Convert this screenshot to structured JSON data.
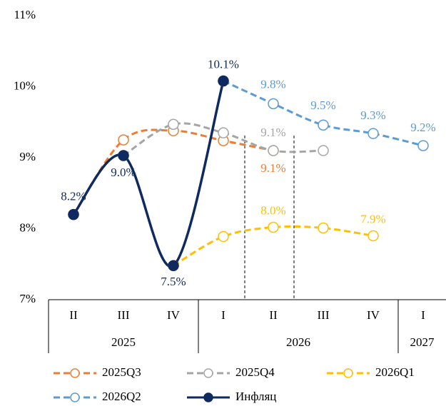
{
  "chart_data": {
    "type": "line",
    "categories": [
      "II",
      "III",
      "IV",
      "I",
      "II",
      "III",
      "IV",
      "I"
    ],
    "years": [
      "2025",
      "2026",
      "2027"
    ],
    "ylim": [
      7,
      11
    ],
    "yticks": [
      {
        "value": 7,
        "label": "7%"
      },
      {
        "value": 8,
        "label": "8%"
      },
      {
        "value": 9,
        "label": "9%"
      },
      {
        "value": 10,
        "label": "10%"
      },
      {
        "value": 11,
        "label": "11%"
      }
    ],
    "grid": false,
    "legend": "bottom",
    "series": [
      {
        "name": "2025Q3",
        "color": "#ED7D31",
        "dashed": true,
        "values": [
          8.2,
          9.25,
          9.38,
          9.24,
          9.1,
          null,
          null,
          null
        ],
        "value_labels": [
          null,
          null,
          null,
          null,
          "9.1%",
          null,
          null,
          null
        ]
      },
      {
        "name": "2025Q4",
        "color": "#A5A5A5",
        "dashed": true,
        "values": [
          null,
          9.03,
          9.47,
          9.35,
          9.1,
          9.1,
          null,
          null
        ],
        "value_labels": [
          null,
          null,
          null,
          null,
          "9.1%",
          null,
          null,
          null
        ]
      },
      {
        "name": "2026Q1",
        "color": "#FFC000",
        "dashed": true,
        "values": [
          null,
          null,
          7.48,
          7.89,
          8.02,
          8.01,
          7.9,
          null
        ],
        "value_labels": [
          null,
          null,
          null,
          null,
          "8.0%",
          null,
          "7.9%",
          null
        ]
      },
      {
        "name": "2026Q2",
        "color": "#5B9BD5",
        "dashed": true,
        "values": [
          null,
          null,
          null,
          10.08,
          9.76,
          9.46,
          9.34,
          9.17
        ],
        "value_labels": [
          null,
          null,
          null,
          null,
          "9.8%",
          "9.5%",
          "9.3%",
          "9.2%"
        ]
      },
      {
        "name": "Инфляц",
        "color": "#0F2A5E",
        "dashed": false,
        "values": [
          8.2,
          9.03,
          7.48,
          10.08,
          null,
          null,
          null,
          null
        ],
        "value_labels": [
          "8.2%",
          "9.0%",
          "7.5%",
          "10.1%",
          null,
          null,
          null,
          null
        ]
      }
    ]
  }
}
